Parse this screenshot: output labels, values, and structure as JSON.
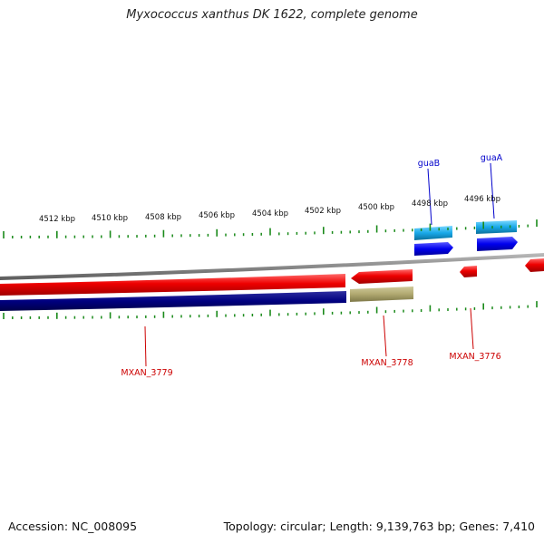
{
  "title": "Myxococcus xanthus DK 1622, complete genome",
  "footer": {
    "accession": "Accession: NC_008095",
    "summary": "Topology: circular; Length: 9,139,763 bp; Genes: 7,410"
  },
  "scale": {
    "unit": "kbp",
    "labels": [
      "4512 kbp",
      "4510 kbp",
      "4508 kbp",
      "4506 kbp",
      "4504 kbp",
      "4502 kbp",
      "4500 kbp",
      "4498 kbp",
      "4496 kbp"
    ]
  },
  "genes": {
    "guaB": "guaB",
    "guaA": "guaA",
    "mxan3779": "MXAN_3779",
    "mxan3778": "MXAN_3778",
    "mxan3776": "MXAN_3776"
  },
  "colors": {
    "forward_cds": "#e00000",
    "reverse_cds": "#000080",
    "rna": "#1aa8e0",
    "gene_blue": "#0000ee",
    "olive": "#a8a070",
    "backbone": "#8a8a8a",
    "tick": "#1a8a1a",
    "label_red": "#cc0000",
    "label_blue": "#0000cc"
  }
}
